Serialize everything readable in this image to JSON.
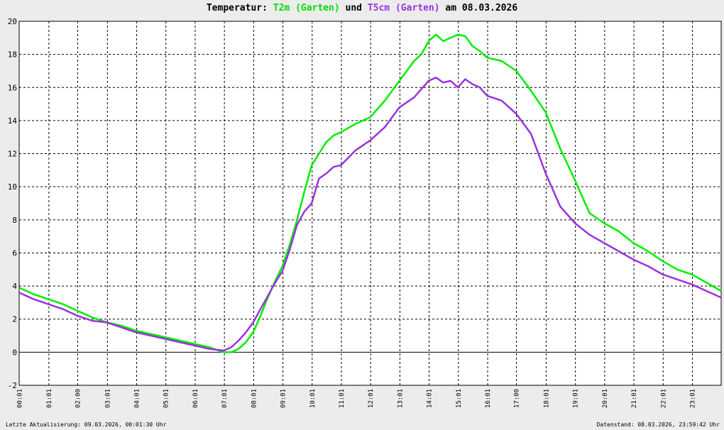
{
  "title": {
    "prefix": "Temperatur: ",
    "series1": "T2m (Garten)",
    "middle": " und ",
    "series2": "T5cm (Garten)",
    "suffix": " am 08.03.2026"
  },
  "footer": {
    "left": "Letzte Aktualisierung: 09.03.2026, 00:01:30 Uhr",
    "right": "Datenstand: 08.03.2026, 23:59:42 Uhr"
  },
  "colors": {
    "background": "#ececec",
    "plot_background": "#ffffff",
    "t2m": "#00ee00",
    "t5cm": "#9933dd",
    "grid": "#000000"
  },
  "chart_data": {
    "type": "line",
    "grid": true,
    "ylim": [
      -2,
      20
    ],
    "yticks": [
      -2,
      0,
      2,
      4,
      6,
      8,
      10,
      12,
      14,
      16,
      18,
      20
    ],
    "xlim": [
      0,
      24
    ],
    "xticks": [
      {
        "value": 0.0167,
        "label": "00:01"
      },
      {
        "value": 1.0167,
        "label": "01:01"
      },
      {
        "value": 2.0,
        "label": "02:00"
      },
      {
        "value": 3.0167,
        "label": "03:01"
      },
      {
        "value": 4.0167,
        "label": "04:01"
      },
      {
        "value": 5.0167,
        "label": "05:01"
      },
      {
        "value": 6.0167,
        "label": "06:01"
      },
      {
        "value": 7.0167,
        "label": "07:01"
      },
      {
        "value": 8.0167,
        "label": "08:01"
      },
      {
        "value": 9.0167,
        "label": "09:01"
      },
      {
        "value": 10.0167,
        "label": "10:01"
      },
      {
        "value": 11.0167,
        "label": "11:01"
      },
      {
        "value": 12.0167,
        "label": "12:01"
      },
      {
        "value": 13.0167,
        "label": "13:01"
      },
      {
        "value": 14.0167,
        "label": "14:01"
      },
      {
        "value": 15.0167,
        "label": "15:01"
      },
      {
        "value": 16.0167,
        "label": "16:01"
      },
      {
        "value": 17.0,
        "label": "17:00"
      },
      {
        "value": 18.0167,
        "label": "18:01"
      },
      {
        "value": 19.0167,
        "label": "19:01"
      },
      {
        "value": 20.0167,
        "label": "20:01"
      },
      {
        "value": 21.0167,
        "label": "21:01"
      },
      {
        "value": 22.0167,
        "label": "22:01"
      },
      {
        "value": 23.0167,
        "label": "23:01"
      }
    ],
    "series": [
      {
        "name": "T2m (Garten)",
        "color": "#00ee00",
        "x": [
          0.0,
          0.5,
          1.0,
          1.5,
          2.0,
          2.5,
          3.0,
          3.5,
          4.0,
          4.5,
          5.0,
          5.5,
          6.0,
          6.5,
          7.0,
          7.25,
          7.5,
          7.75,
          8.0,
          8.25,
          8.5,
          8.75,
          9.0,
          9.25,
          9.5,
          9.75,
          10.0,
          10.25,
          10.5,
          10.75,
          11.0,
          11.5,
          12.0,
          12.5,
          13.0,
          13.5,
          13.75,
          14.0,
          14.25,
          14.5,
          14.75,
          15.0,
          15.25,
          15.5,
          15.75,
          16.0,
          16.5,
          17.0,
          17.5,
          18.0,
          18.5,
          19.0,
          19.5,
          20.0,
          20.5,
          21.0,
          21.5,
          22.0,
          22.5,
          23.0,
          23.5,
          24.0
        ],
        "y": [
          3.9,
          3.5,
          3.2,
          2.9,
          2.5,
          2.1,
          1.8,
          1.6,
          1.3,
          1.1,
          0.9,
          0.7,
          0.5,
          0.3,
          0.0,
          0.0,
          0.2,
          0.6,
          1.2,
          2.2,
          3.3,
          4.3,
          5.2,
          6.5,
          8.0,
          9.7,
          11.3,
          12.0,
          12.7,
          13.1,
          13.3,
          13.8,
          14.2,
          15.2,
          16.4,
          17.6,
          18.0,
          18.8,
          19.2,
          18.8,
          19.0,
          19.2,
          19.1,
          18.5,
          18.2,
          17.8,
          17.6,
          17.0,
          15.8,
          14.5,
          12.3,
          10.4,
          8.4,
          7.8,
          7.3,
          6.6,
          6.1,
          5.5,
          5.0,
          4.7,
          4.2,
          3.7
        ]
      },
      {
        "name": "T5cm (Garten)",
        "color": "#9933dd",
        "x": [
          0.0,
          0.5,
          1.0,
          1.5,
          2.0,
          2.5,
          3.0,
          3.5,
          4.0,
          4.5,
          5.0,
          5.5,
          6.0,
          6.5,
          7.0,
          7.25,
          7.5,
          7.75,
          8.0,
          8.25,
          8.5,
          8.75,
          9.0,
          9.25,
          9.5,
          9.75,
          10.0,
          10.25,
          10.5,
          10.75,
          11.0,
          11.5,
          12.0,
          12.5,
          13.0,
          13.5,
          13.75,
          14.0,
          14.25,
          14.5,
          14.75,
          15.0,
          15.25,
          15.5,
          15.75,
          16.0,
          16.5,
          17.0,
          17.5,
          18.0,
          18.5,
          19.0,
          19.5,
          20.0,
          20.5,
          21.0,
          21.5,
          22.0,
          22.5,
          23.0,
          23.5,
          24.0
        ],
        "y": [
          3.6,
          3.2,
          2.9,
          2.6,
          2.2,
          1.9,
          1.8,
          1.5,
          1.2,
          1.0,
          0.8,
          0.6,
          0.4,
          0.2,
          0.1,
          0.3,
          0.7,
          1.2,
          1.8,
          2.6,
          3.4,
          4.2,
          4.9,
          6.2,
          7.7,
          8.5,
          9.0,
          10.5,
          10.8,
          11.2,
          11.3,
          12.2,
          12.8,
          13.6,
          14.8,
          15.4,
          15.9,
          16.4,
          16.6,
          16.3,
          16.4,
          16.0,
          16.5,
          16.2,
          16.0,
          15.5,
          15.2,
          14.4,
          13.2,
          10.8,
          8.8,
          7.8,
          7.1,
          6.6,
          6.1,
          5.6,
          5.2,
          4.7,
          4.4,
          4.1,
          3.7,
          3.3
        ]
      }
    ]
  }
}
